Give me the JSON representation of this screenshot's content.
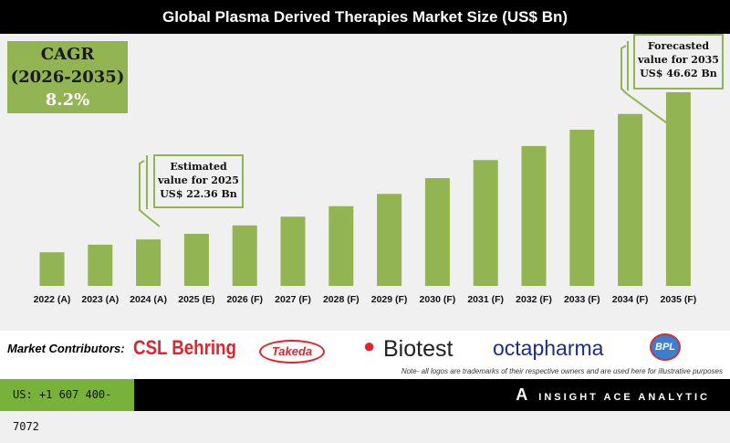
{
  "title": "Global Plasma Derived Therapies Market Size (US$ Bn)",
  "cagr": {
    "label": "CAGR",
    "period": "(2026-2035)",
    "value": "8.2%"
  },
  "callouts": {
    "estimated": [
      "Estimated",
      "value for 2025",
      "US$ 22.36 Bn"
    ],
    "forecasted": [
      "Forecasted",
      "value for 2035",
      "US$ 46.62 Bn"
    ]
  },
  "chart_data": {
    "type": "bar",
    "title": "Global Plasma Derived Therapies Market Size (US$ Bn)",
    "categories": [
      "2022 (A)",
      "2023 (A)",
      "2024 (A)",
      "2025 (E)",
      "2026 (F)",
      "2027 (F)",
      "2028 (F)",
      "2029 (F)",
      "2030 (F)",
      "2031 (F)",
      "2032 (F)",
      "2033 (F)",
      "2034 (F)",
      "2035 (F)"
    ],
    "values": [
      19.2,
      20.5,
      21.4,
      22.36,
      23.8,
      25.3,
      27.1,
      29.2,
      31.9,
      35.0,
      37.4,
      40.2,
      42.9,
      46.62
    ],
    "color": "#92b452",
    "grid": false,
    "xlabel": "",
    "ylabel": ""
  },
  "contributors": {
    "label": "Market Contributors:",
    "logos": [
      "CSL Behring",
      "Takeda",
      "Biotest",
      "octapharma",
      "BPL"
    ],
    "note": "Note- all logos are trademarks of their respective owners and are used here for illustrative purposes"
  },
  "footer": {
    "phone": "US: +1 607 400-7072",
    "brand": "INSIGHT ACE ANALYTIC"
  }
}
